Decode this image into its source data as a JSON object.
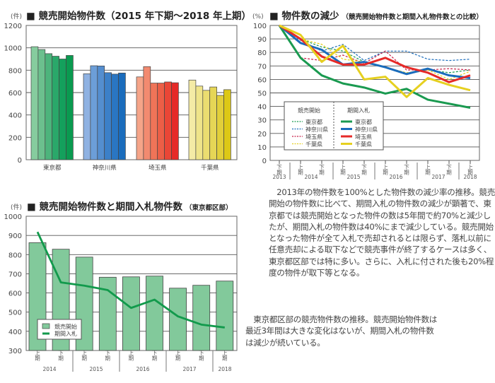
{
  "chart_data": [
    {
      "type": "bar",
      "title": "■ 競売開始物件数（2015 年下期～2018 年上期）",
      "unit_label": "(件)",
      "ylim": [
        0,
        1200
      ],
      "yticks": [
        "0",
        "200",
        "400",
        "600",
        "800",
        "1000",
        "1200"
      ],
      "grid": true,
      "categories": [
        "東京都",
        "神奈川県",
        "埼玉県",
        "千葉県"
      ],
      "series_per_category": [
        {
          "category": "東京都",
          "values": [
            1010,
            985,
            948,
            925,
            900,
            932
          ],
          "colors": [
            "#86cc9e",
            "#6cc08e",
            "#4db47c",
            "#2aa86a",
            "#14a05c",
            "#0a9a50"
          ]
        },
        {
          "category": "神奈川県",
          "values": [
            768,
            840,
            838,
            778,
            765,
            775
          ],
          "colors": [
            "#8fb2e2",
            "#6c9ed8",
            "#548ecf",
            "#3c80c8",
            "#2a76c2",
            "#1a6cbc"
          ]
        },
        {
          "category": "埼玉県",
          "values": [
            740,
            832,
            685,
            685,
            695,
            688
          ],
          "colors": [
            "#f5a488",
            "#f28a70",
            "#ef7458",
            "#ec5e46",
            "#ea4636",
            "#e62a28"
          ]
        },
        {
          "category": "千葉県",
          "values": [
            712,
            658,
            620,
            650,
            575,
            626
          ],
          "colors": [
            "#f4eba6",
            "#efe48a",
            "#ebdd70",
            "#e6d656",
            "#e2cf3a",
            "#ddc816"
          ]
        }
      ]
    },
    {
      "type": "line",
      "title": "■ 物件数の減少",
      "subtitle": "（競売開始物件数と期間入札物件数との比較）",
      "unit_label": "(%)",
      "ylim": [
        0,
        100
      ],
      "yticks": [
        "0",
        "10",
        "20",
        "30",
        "40",
        "50",
        "60",
        "70",
        "80",
        "90",
        "100"
      ],
      "grid": true,
      "x_periods": [
        "下期",
        "上期",
        "下期",
        "上期",
        "下期",
        "上期",
        "下期",
        "上期",
        "下期",
        "上期"
      ],
      "x_years": [
        "2013",
        "2014",
        "2015",
        "2016",
        "2017",
        "2018"
      ],
      "legend": {
        "placement": "bottom-left",
        "group_left": "競売開始",
        "group_right": "期間入札"
      },
      "series": [
        {
          "group": "競売開始",
          "name": "東京都",
          "style": "dashed",
          "color": "#1a9a50",
          "values": [
            100,
            90,
            84,
            81,
            73,
            69,
            64,
            67,
            65,
            67
          ]
        },
        {
          "group": "競売開始",
          "name": "神奈川県",
          "style": "dashed",
          "color": "#1a6cbc",
          "values": [
            100,
            89,
            81,
            86,
            74,
            81,
            81,
            75,
            74,
            75
          ]
        },
        {
          "group": "競売開始",
          "name": "埼玉県",
          "style": "dashed",
          "color": "#c8204a",
          "values": [
            100,
            76,
            74,
            78,
            72,
            81,
            67,
            67,
            68,
            67
          ]
        },
        {
          "group": "競売開始",
          "name": "千葉県",
          "style": "dashed",
          "color": "#e6d020",
          "values": [
            100,
            90,
            86,
            75,
            73,
            69,
            65,
            67,
            60,
            66
          ]
        },
        {
          "group": "期間入札",
          "name": "東京都",
          "style": "solid",
          "color": "#1a9a50",
          "values": [
            100,
            76,
            63,
            57,
            54,
            49.5,
            53,
            45,
            42,
            39
          ]
        },
        {
          "group": "期間入札",
          "name": "神奈川県",
          "style": "solid",
          "color": "#1a6cbc",
          "values": [
            100,
            87,
            82,
            71,
            73,
            69,
            64,
            68,
            63,
            61
          ]
        },
        {
          "group": "期間入札",
          "name": "埼玉県",
          "style": "solid",
          "color": "#e62a28",
          "values": [
            100,
            90,
            77,
            71,
            71,
            76,
            69,
            65,
            58,
            63
          ]
        },
        {
          "group": "期間入札",
          "name": "千葉県",
          "style": "solid",
          "color": "#e6d020",
          "values": [
            100,
            93,
            73,
            85,
            60,
            62,
            47,
            61,
            56,
            52
          ]
        }
      ]
    },
    {
      "type": "bar+line",
      "title": "■ 競売開始物件数と期間入札物件数",
      "subtitle": "（東京都区部）",
      "unit_label": "(件)",
      "ylim": [
        300,
        1000
      ],
      "yticks": [
        "300",
        "400",
        "500",
        "600",
        "700",
        "800",
        "900",
        "1000"
      ],
      "grid": true,
      "x_periods": [
        "上期",
        "下期",
        "上期",
        "下期",
        "上期",
        "下期",
        "上期",
        "下期",
        "上期"
      ],
      "x_years": [
        "2014",
        "2015",
        "2016",
        "2017",
        "2018"
      ],
      "legend": {
        "placement": "bottom-left"
      },
      "series": [
        {
          "name": "競売開始",
          "type": "bar",
          "color": "#82c99b",
          "values": [
            862,
            828,
            787,
            682,
            684,
            688,
            625,
            640,
            662
          ]
        },
        {
          "name": "期間入札",
          "type": "line",
          "color": "#129a4c",
          "values": [
            918,
            655,
            638,
            615,
            522,
            565,
            478,
            435,
            420
          ]
        }
      ]
    }
  ],
  "captions": {
    "decline_note": [
      "　2013年の物件数を100%とした物件数の減少率の推移。競売",
      "開始の物件数に比べて、期間入札の物件数の減少が顕著で、東",
      "京都では競売開始となった物件の数は5年間で約70%と減少し",
      "たが、期間入札の物件数は40%にまで減少している。競売開始",
      "となった物件が全て入札で売却されるとは限らず、落札以前に",
      "任意売却による取下などで競売事件が終了するケースは多く、",
      "東京都区部では特に多い。さらに、入札に付された後も20%程",
      "度の物件が取下等となる。"
    ],
    "tokyo_note": [
      "　東京都区部の競売物件数の推移。競売開始物件数は",
      "最近3年間は大きな変化はないが、期間入札の物件数",
      "は減少が続いている。"
    ]
  }
}
